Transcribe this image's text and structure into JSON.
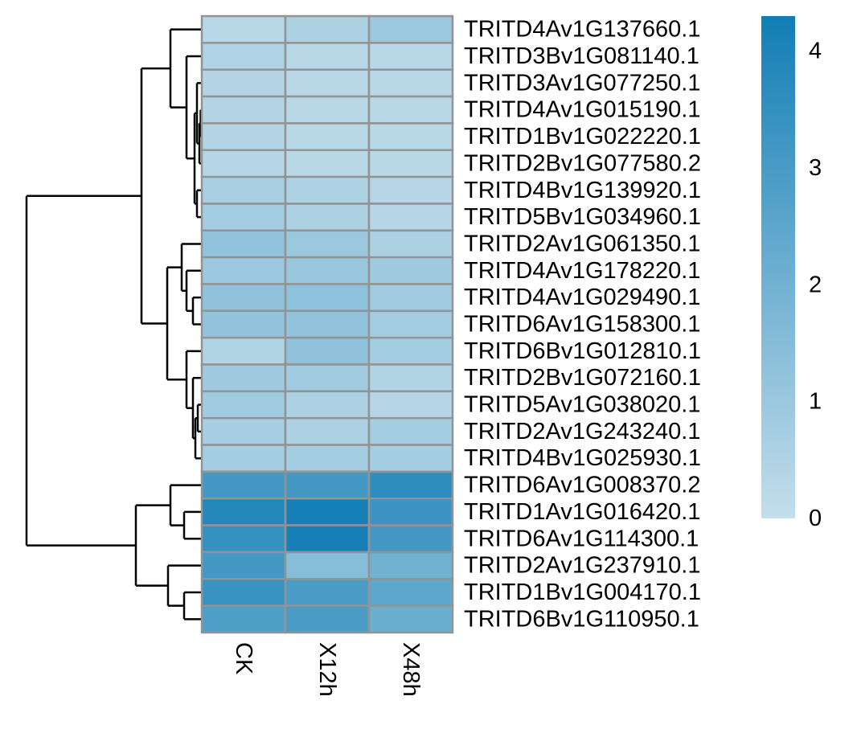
{
  "chart_data": {
    "type": "heatmap",
    "title": "",
    "xlabel": "",
    "ylabel": "",
    "columns": [
      "CK",
      "X12h",
      "X48h"
    ],
    "rows": [
      "TRITD4Av1G137660.1",
      "TRITD3Bv1G081140.1",
      "TRITD3Av1G077250.1",
      "TRITD4Av1G015190.1",
      "TRITD1Bv1G022220.1",
      "TRITD2Bv1G077580.2",
      "TRITD4Bv1G139920.1",
      "TRITD5Bv1G034960.1",
      "TRITD2Av1G061350.1",
      "TRITD4Av1G178220.1",
      "TRITD4Av1G029490.1",
      "TRITD6Av1G158300.1",
      "TRITD6Bv1G012810.1",
      "TRITD2Bv1G072160.1",
      "TRITD5Av1G038020.1",
      "TRITD2Av1G243240.1",
      "TRITD4Bv1G025930.1",
      "TRITD6Av1G008370.2",
      "TRITD1Av1G016420.1",
      "TRITD6Av1G114300.1",
      "TRITD2Av1G237910.1",
      "TRITD1Bv1G004170.1",
      "TRITD6Bv1G110950.1"
    ],
    "values": [
      [
        0.3,
        0.6,
        1.0
      ],
      [
        0.5,
        0.3,
        0.3
      ],
      [
        0.4,
        0.3,
        0.3
      ],
      [
        0.4,
        0.3,
        0.3
      ],
      [
        0.4,
        0.3,
        0.3
      ],
      [
        0.35,
        0.3,
        0.3
      ],
      [
        0.65,
        0.55,
        0.35
      ],
      [
        0.75,
        0.6,
        0.35
      ],
      [
        1.2,
        1.0,
        0.6
      ],
      [
        1.0,
        1.05,
        0.9
      ],
      [
        1.25,
        1.3,
        0.85
      ],
      [
        1.15,
        1.2,
        0.8
      ],
      [
        0.45,
        1.25,
        0.75
      ],
      [
        0.9,
        0.85,
        0.45
      ],
      [
        0.85,
        0.6,
        0.35
      ],
      [
        0.7,
        0.6,
        0.75
      ],
      [
        0.75,
        0.75,
        0.75
      ],
      [
        3.1,
        3.1,
        3.6
      ],
      [
        3.9,
        4.2,
        3.3
      ],
      [
        3.45,
        4.2,
        3.1
      ],
      [
        3.1,
        1.5,
        2.0
      ],
      [
        3.35,
        2.95,
        2.5
      ],
      [
        2.8,
        2.95,
        2.15
      ]
    ],
    "color_range": [
      0,
      4.3
    ],
    "color_low": "#C4DEEB",
    "color_high": "#127EB5",
    "legend": {
      "ticks": [
        0,
        1,
        2,
        3,
        4
      ],
      "placement": "right"
    },
    "cell_border_color": "#939393",
    "row_dendrogram": true,
    "col_dendrogram": false
  }
}
